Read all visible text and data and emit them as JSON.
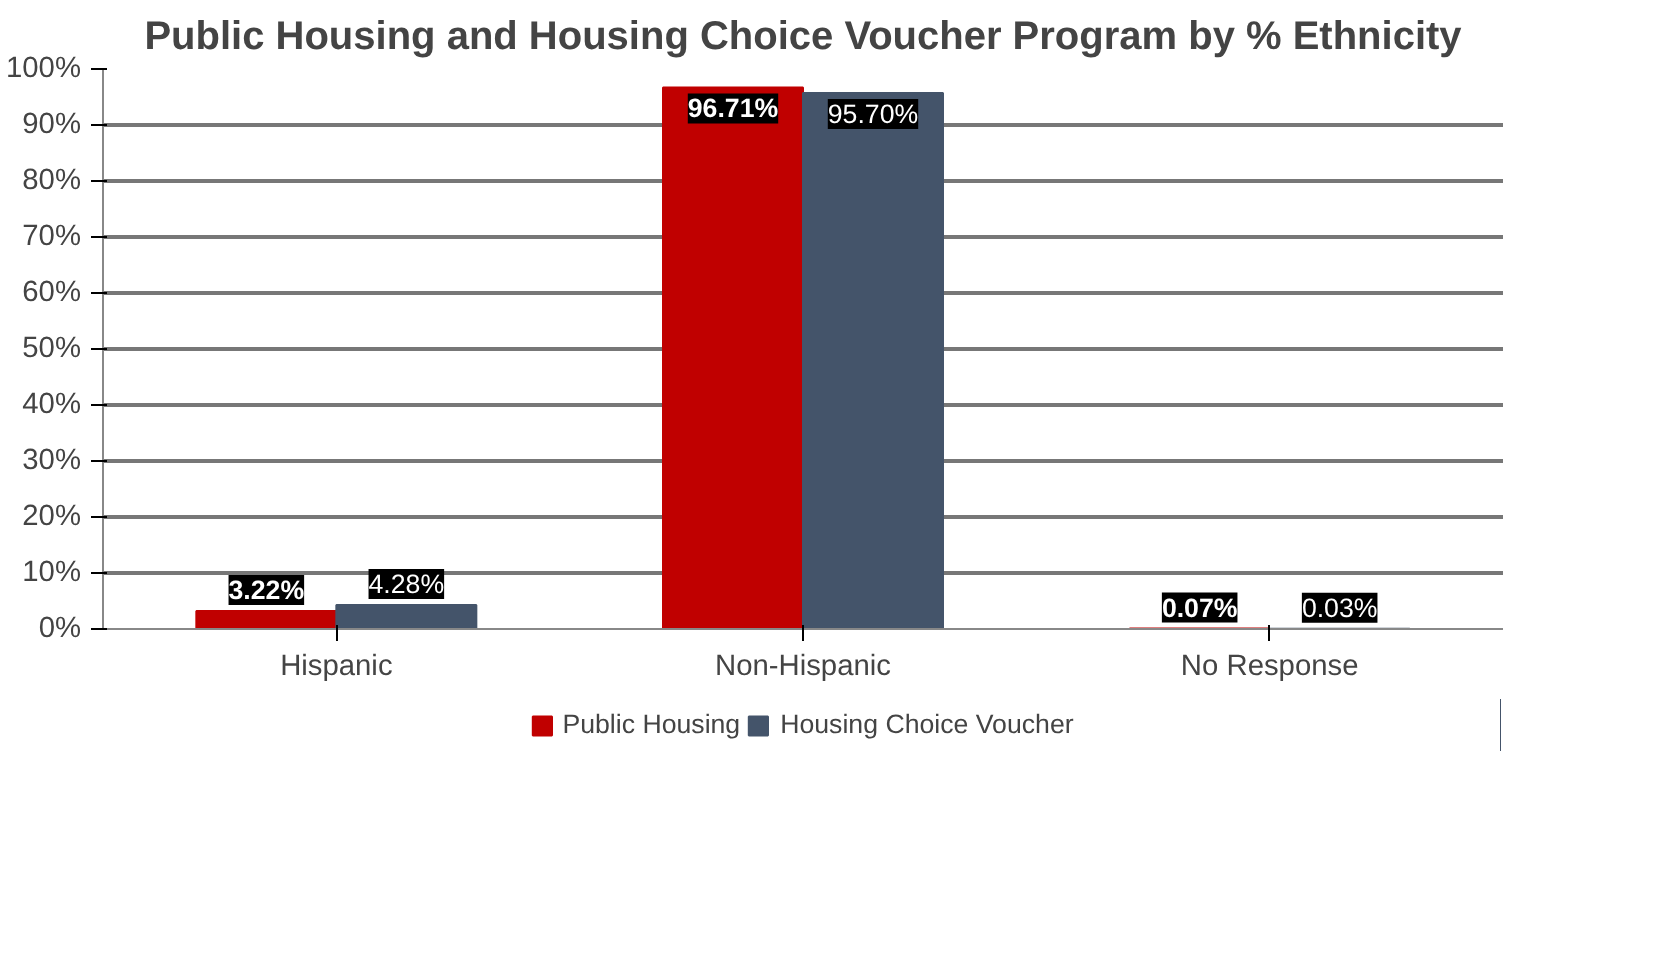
{
  "chart_data": {
    "type": "bar",
    "title": "Public Housing and Housing Choice Voucher Program by % Ethnicity",
    "categories": [
      "Hispanic",
      "Non-Hispanic",
      "No Response"
    ],
    "series": [
      {
        "name": "Public Housing",
        "color": "#c00000",
        "values": [
          3.22,
          96.71,
          0.07
        ],
        "value_labels": [
          "3.22%",
          "96.71%",
          "0.07%"
        ]
      },
      {
        "name": "Housing Choice Voucher",
        "color": "#44546a",
        "values": [
          4.28,
          95.7,
          0.03
        ],
        "value_labels": [
          "4.28%",
          "95.70%",
          "0.03%"
        ]
      }
    ],
    "ylim": [
      0,
      100
    ],
    "yticks": [
      {
        "value": 0,
        "label": "0%"
      },
      {
        "value": 10,
        "label": "10%"
      },
      {
        "value": 20,
        "label": "20%"
      },
      {
        "value": 30,
        "label": "30%"
      },
      {
        "value": 40,
        "label": "40%"
      },
      {
        "value": 50,
        "label": "50%"
      },
      {
        "value": 60,
        "label": "60%"
      },
      {
        "value": 70,
        "label": "70%"
      },
      {
        "value": 80,
        "label": "80%"
      },
      {
        "value": 90,
        "label": "90%"
      },
      {
        "value": 100,
        "label": "100%"
      }
    ],
    "grid": "y",
    "legend": "bottom"
  }
}
